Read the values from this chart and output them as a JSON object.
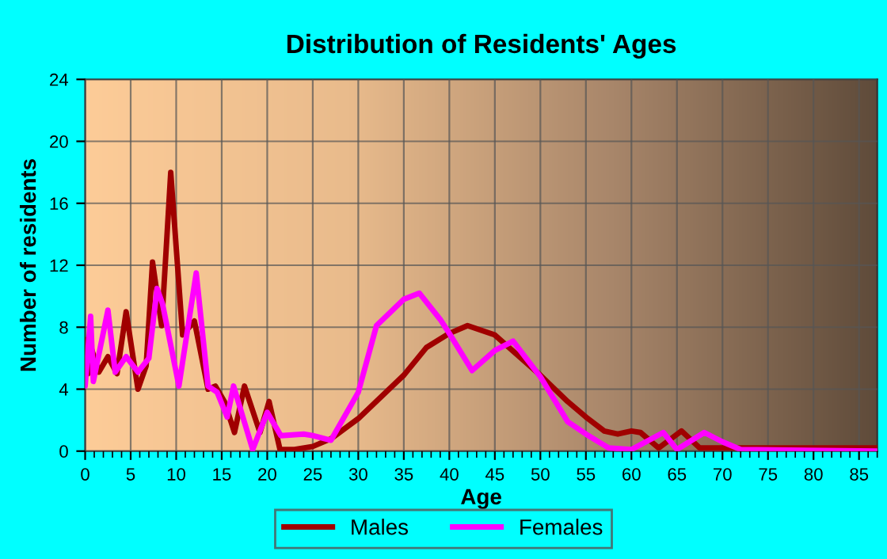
{
  "chart_data": {
    "type": "line",
    "title": "Distribution of Residents' Ages",
    "xlabel": "Age",
    "ylabel": "Number of residents",
    "xlim": [
      0,
      87
    ],
    "xticks": [
      0,
      5,
      10,
      15,
      20,
      25,
      30,
      35,
      40,
      45,
      50,
      55,
      60,
      65,
      70,
      75,
      80,
      85
    ],
    "ylim": [
      0,
      24
    ],
    "yticks": [
      0,
      4,
      8,
      12,
      16,
      20,
      24
    ],
    "grid": true,
    "legend": "bottom",
    "marker": "none",
    "line_style": "solid",
    "series": [
      {
        "name": "Males",
        "color": "#a00000",
        "x": [
          0,
          0.3,
          0.7,
          1.5,
          2.5,
          3.5,
          4.5,
          5.8,
          6.7,
          7.4,
          8.4,
          9.4,
          10.7,
          12,
          13.5,
          14.3,
          15.3,
          16.4,
          17.5,
          19.2,
          20.2,
          21.4,
          23,
          25,
          27,
          30,
          35,
          37.5,
          40,
          42,
          45,
          50,
          53,
          55,
          57,
          58.5,
          60,
          61,
          63,
          65.5,
          67.5,
          70,
          87
        ],
        "values": [
          7.2,
          5.0,
          6.6,
          5.1,
          6.1,
          5.0,
          9.0,
          4.0,
          5.5,
          12.2,
          8.1,
          18.0,
          7.5,
          8.4,
          4.0,
          4.2,
          3.2,
          1.2,
          4.2,
          1.2,
          3.2,
          0.1,
          0.1,
          0.3,
          0.8,
          2.1,
          4.9,
          6.7,
          7.6,
          8.1,
          7.5,
          4.9,
          3.2,
          2.2,
          1.3,
          1.1,
          1.3,
          1.2,
          0.2,
          1.3,
          0.2,
          0.2,
          0.2
        ]
      },
      {
        "name": "Females",
        "color": "#ff00ff",
        "x": [
          0,
          0.6,
          0.9,
          2.5,
          3.3,
          4.5,
          5.8,
          7,
          7.9,
          8.5,
          10.3,
          12.2,
          13.5,
          14.5,
          15.6,
          16.3,
          18.4,
          20,
          21.5,
          24,
          25,
          27,
          30,
          32,
          35,
          36.7,
          39,
          40,
          42.5,
          45,
          47,
          50,
          53,
          55,
          57.5,
          60,
          63.5,
          65,
          68,
          70,
          72,
          87
        ],
        "values": [
          4.2,
          8.7,
          4.5,
          9.1,
          5.1,
          6.1,
          5.1,
          6.0,
          10.5,
          9.5,
          4.2,
          11.5,
          4.2,
          3.8,
          2.2,
          4.2,
          0.1,
          2.5,
          1.0,
          1.1,
          1.0,
          0.7,
          3.8,
          8.1,
          9.8,
          10.2,
          8.5,
          7.6,
          5.2,
          6.5,
          7.1,
          4.8,
          1.9,
          1.1,
          0.2,
          0.1,
          1.2,
          0.1,
          1.2,
          0.6,
          0.1,
          0.0
        ]
      }
    ]
  }
}
